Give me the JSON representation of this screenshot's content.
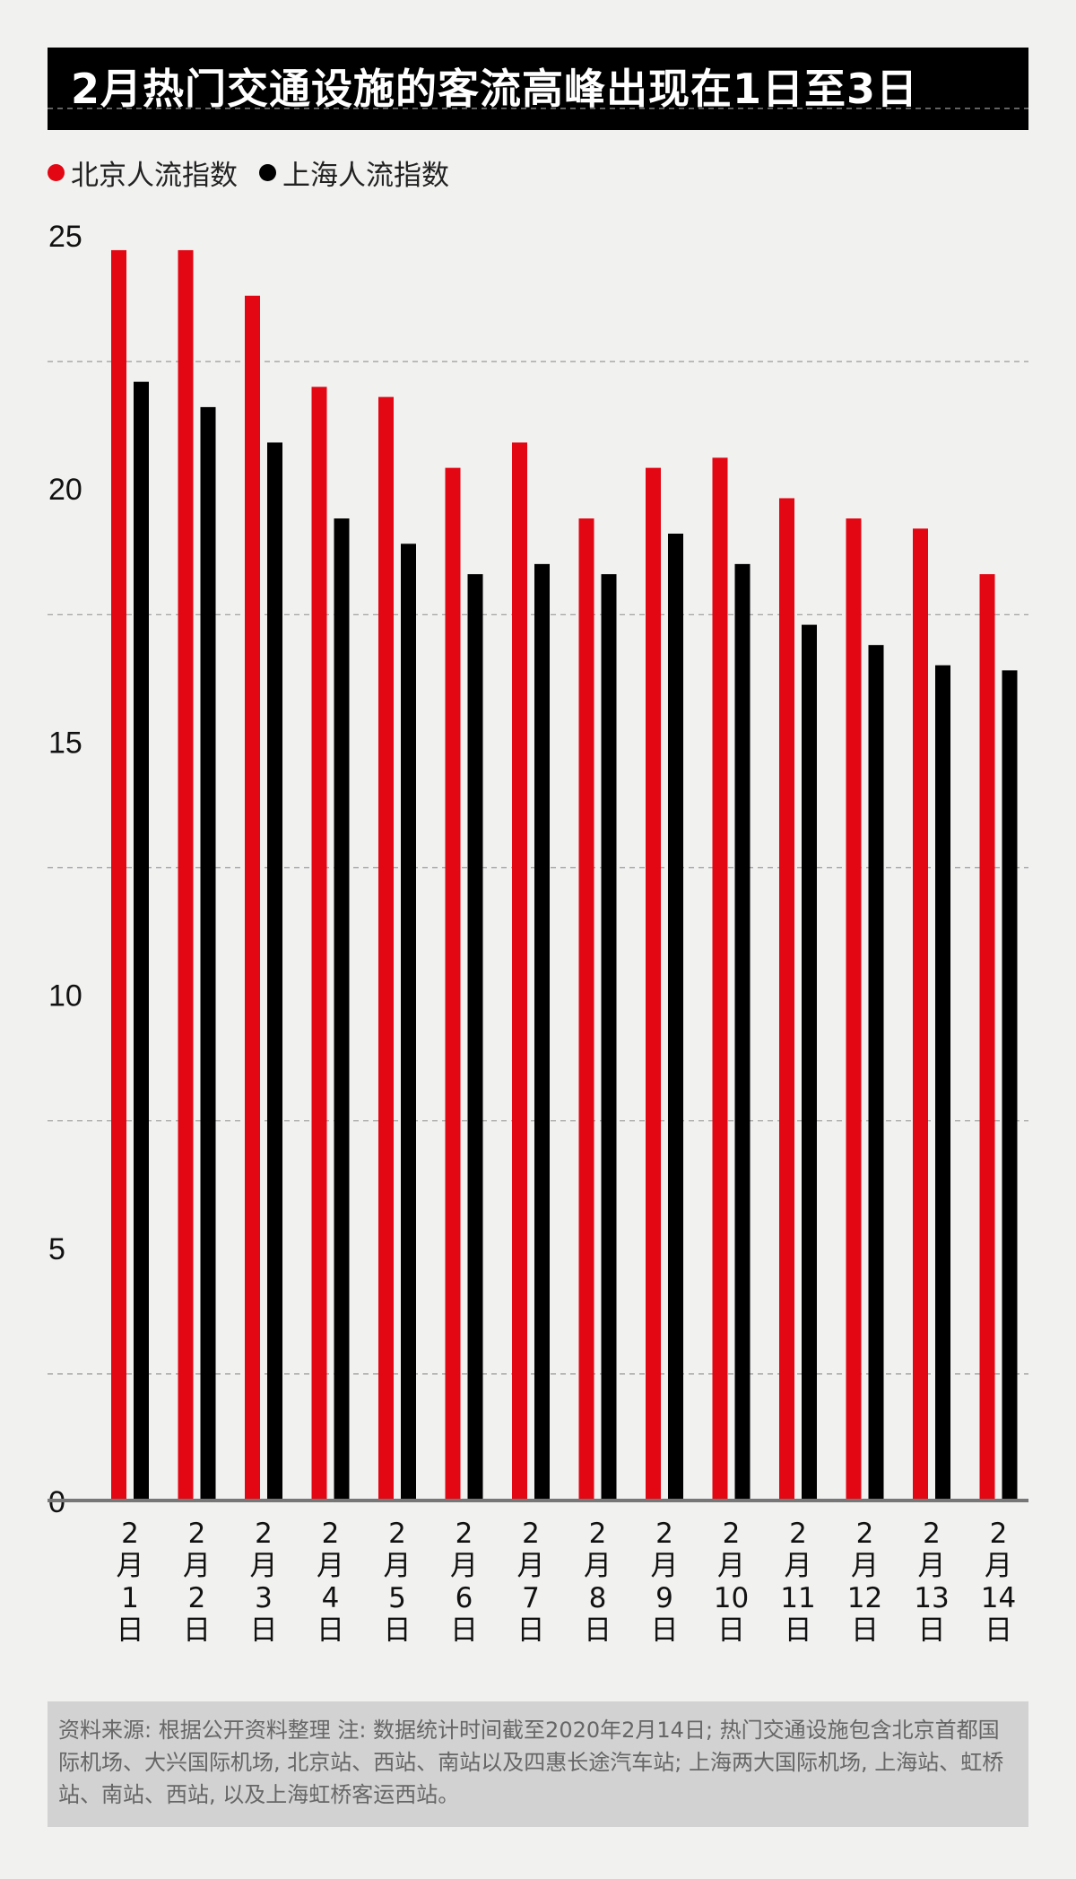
{
  "title": "2月热门交通设施的客流高峰出现在1日至3日",
  "legend": [
    {
      "label": "北京人流指数",
      "color": "#e30613"
    },
    {
      "label": "上海人流指数",
      "color": "#000000"
    }
  ],
  "chart_data": {
    "type": "bar",
    "title": "2月热门交通设施的客流高峰出现在1日至3日",
    "xlabel": "",
    "ylabel": "",
    "ylim": [
      0,
      25
    ],
    "yticks": [
      0,
      5,
      10,
      15,
      20,
      25
    ],
    "grid": true,
    "legend_position": "top-left",
    "categories": [
      "2月1日",
      "2月2日",
      "2月3日",
      "2月4日",
      "2月5日",
      "2月6日",
      "2月7日",
      "2月8日",
      "2月9日",
      "2月10日",
      "2月11日",
      "2月12日",
      "2月13日",
      "2月14日"
    ],
    "series": [
      {
        "name": "北京人流指数",
        "color": "#e30613",
        "values": [
          24.7,
          24.7,
          23.8,
          22.0,
          21.8,
          20.4,
          20.9,
          19.4,
          20.4,
          20.6,
          19.8,
          19.4,
          19.2,
          18.3
        ]
      },
      {
        "name": "上海人流指数",
        "color": "#000000",
        "values": [
          22.1,
          21.6,
          20.9,
          19.4,
          18.9,
          18.3,
          18.5,
          18.3,
          19.1,
          18.5,
          17.3,
          16.9,
          16.5,
          16.4
        ]
      }
    ]
  },
  "footnote": "资料来源: 根据公开资料整理  注: 数据统计时间截至2020年2月14日; 热门交通设施包含北京首都国际机场、大兴国际机场, 北京站、西站、南站以及四惠长途汽车站; 上海两大国际机场, 上海站、虹桥站、南站、西站, 以及上海虹桥客运西站。"
}
